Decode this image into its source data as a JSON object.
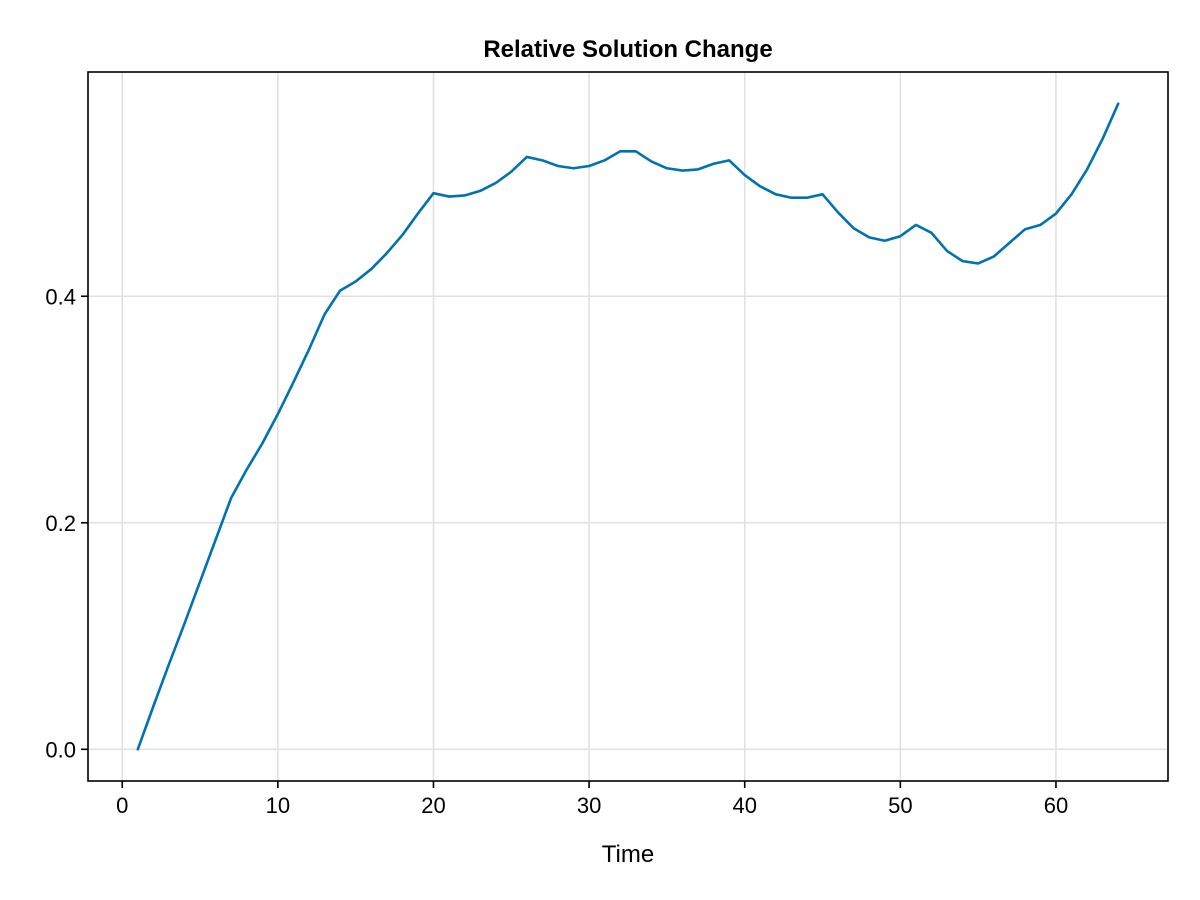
{
  "chart_data": {
    "type": "line",
    "title": "Relative Solution Change",
    "xlabel": "Time",
    "ylabel": "",
    "xlim": [
      -2.2,
      67.2
    ],
    "ylim": [
      -0.028,
      0.598
    ],
    "xticks": [
      0,
      10,
      20,
      30,
      40,
      50,
      60
    ],
    "xtick_labels": [
      "0",
      "10",
      "20",
      "30",
      "40",
      "50",
      "60"
    ],
    "yticks": [
      0.0,
      0.2,
      0.4
    ],
    "ytick_labels": [
      "0.0",
      "0.2",
      "0.4"
    ],
    "grid": true,
    "legend": "none",
    "series": [
      {
        "color": "#0072b2",
        "x": [
          1,
          2,
          3,
          4,
          5,
          6,
          7,
          8,
          9,
          10,
          11,
          12,
          13,
          14,
          15,
          16,
          17,
          18,
          19,
          20,
          21,
          22,
          23,
          24,
          25,
          26,
          27,
          28,
          29,
          30,
          31,
          32,
          33,
          34,
          35,
          36,
          37,
          38,
          39,
          40,
          41,
          42,
          43,
          44,
          45,
          46,
          47,
          48,
          49,
          50,
          51,
          52,
          53,
          54,
          55,
          56,
          57,
          58,
          59,
          60,
          61,
          62,
          63,
          64
        ],
        "y": [
          0.0,
          0.038,
          0.075,
          0.111,
          0.148,
          0.185,
          0.222,
          0.247,
          0.27,
          0.296,
          0.324,
          0.353,
          0.384,
          0.405,
          0.413,
          0.424,
          0.438,
          0.454,
          0.473,
          0.491,
          0.488,
          0.489,
          0.493,
          0.5,
          0.51,
          0.523,
          0.52,
          0.515,
          0.513,
          0.515,
          0.52,
          0.528,
          0.528,
          0.519,
          0.513,
          0.511,
          0.512,
          0.517,
          0.52,
          0.507,
          0.497,
          0.49,
          0.487,
          0.487,
          0.49,
          0.474,
          0.46,
          0.452,
          0.449,
          0.453,
          0.463,
          0.456,
          0.44,
          0.431,
          0.429,
          0.435,
          0.447,
          0.459,
          0.463,
          0.473,
          0.49,
          0.512,
          0.539,
          0.57
        ]
      }
    ]
  }
}
